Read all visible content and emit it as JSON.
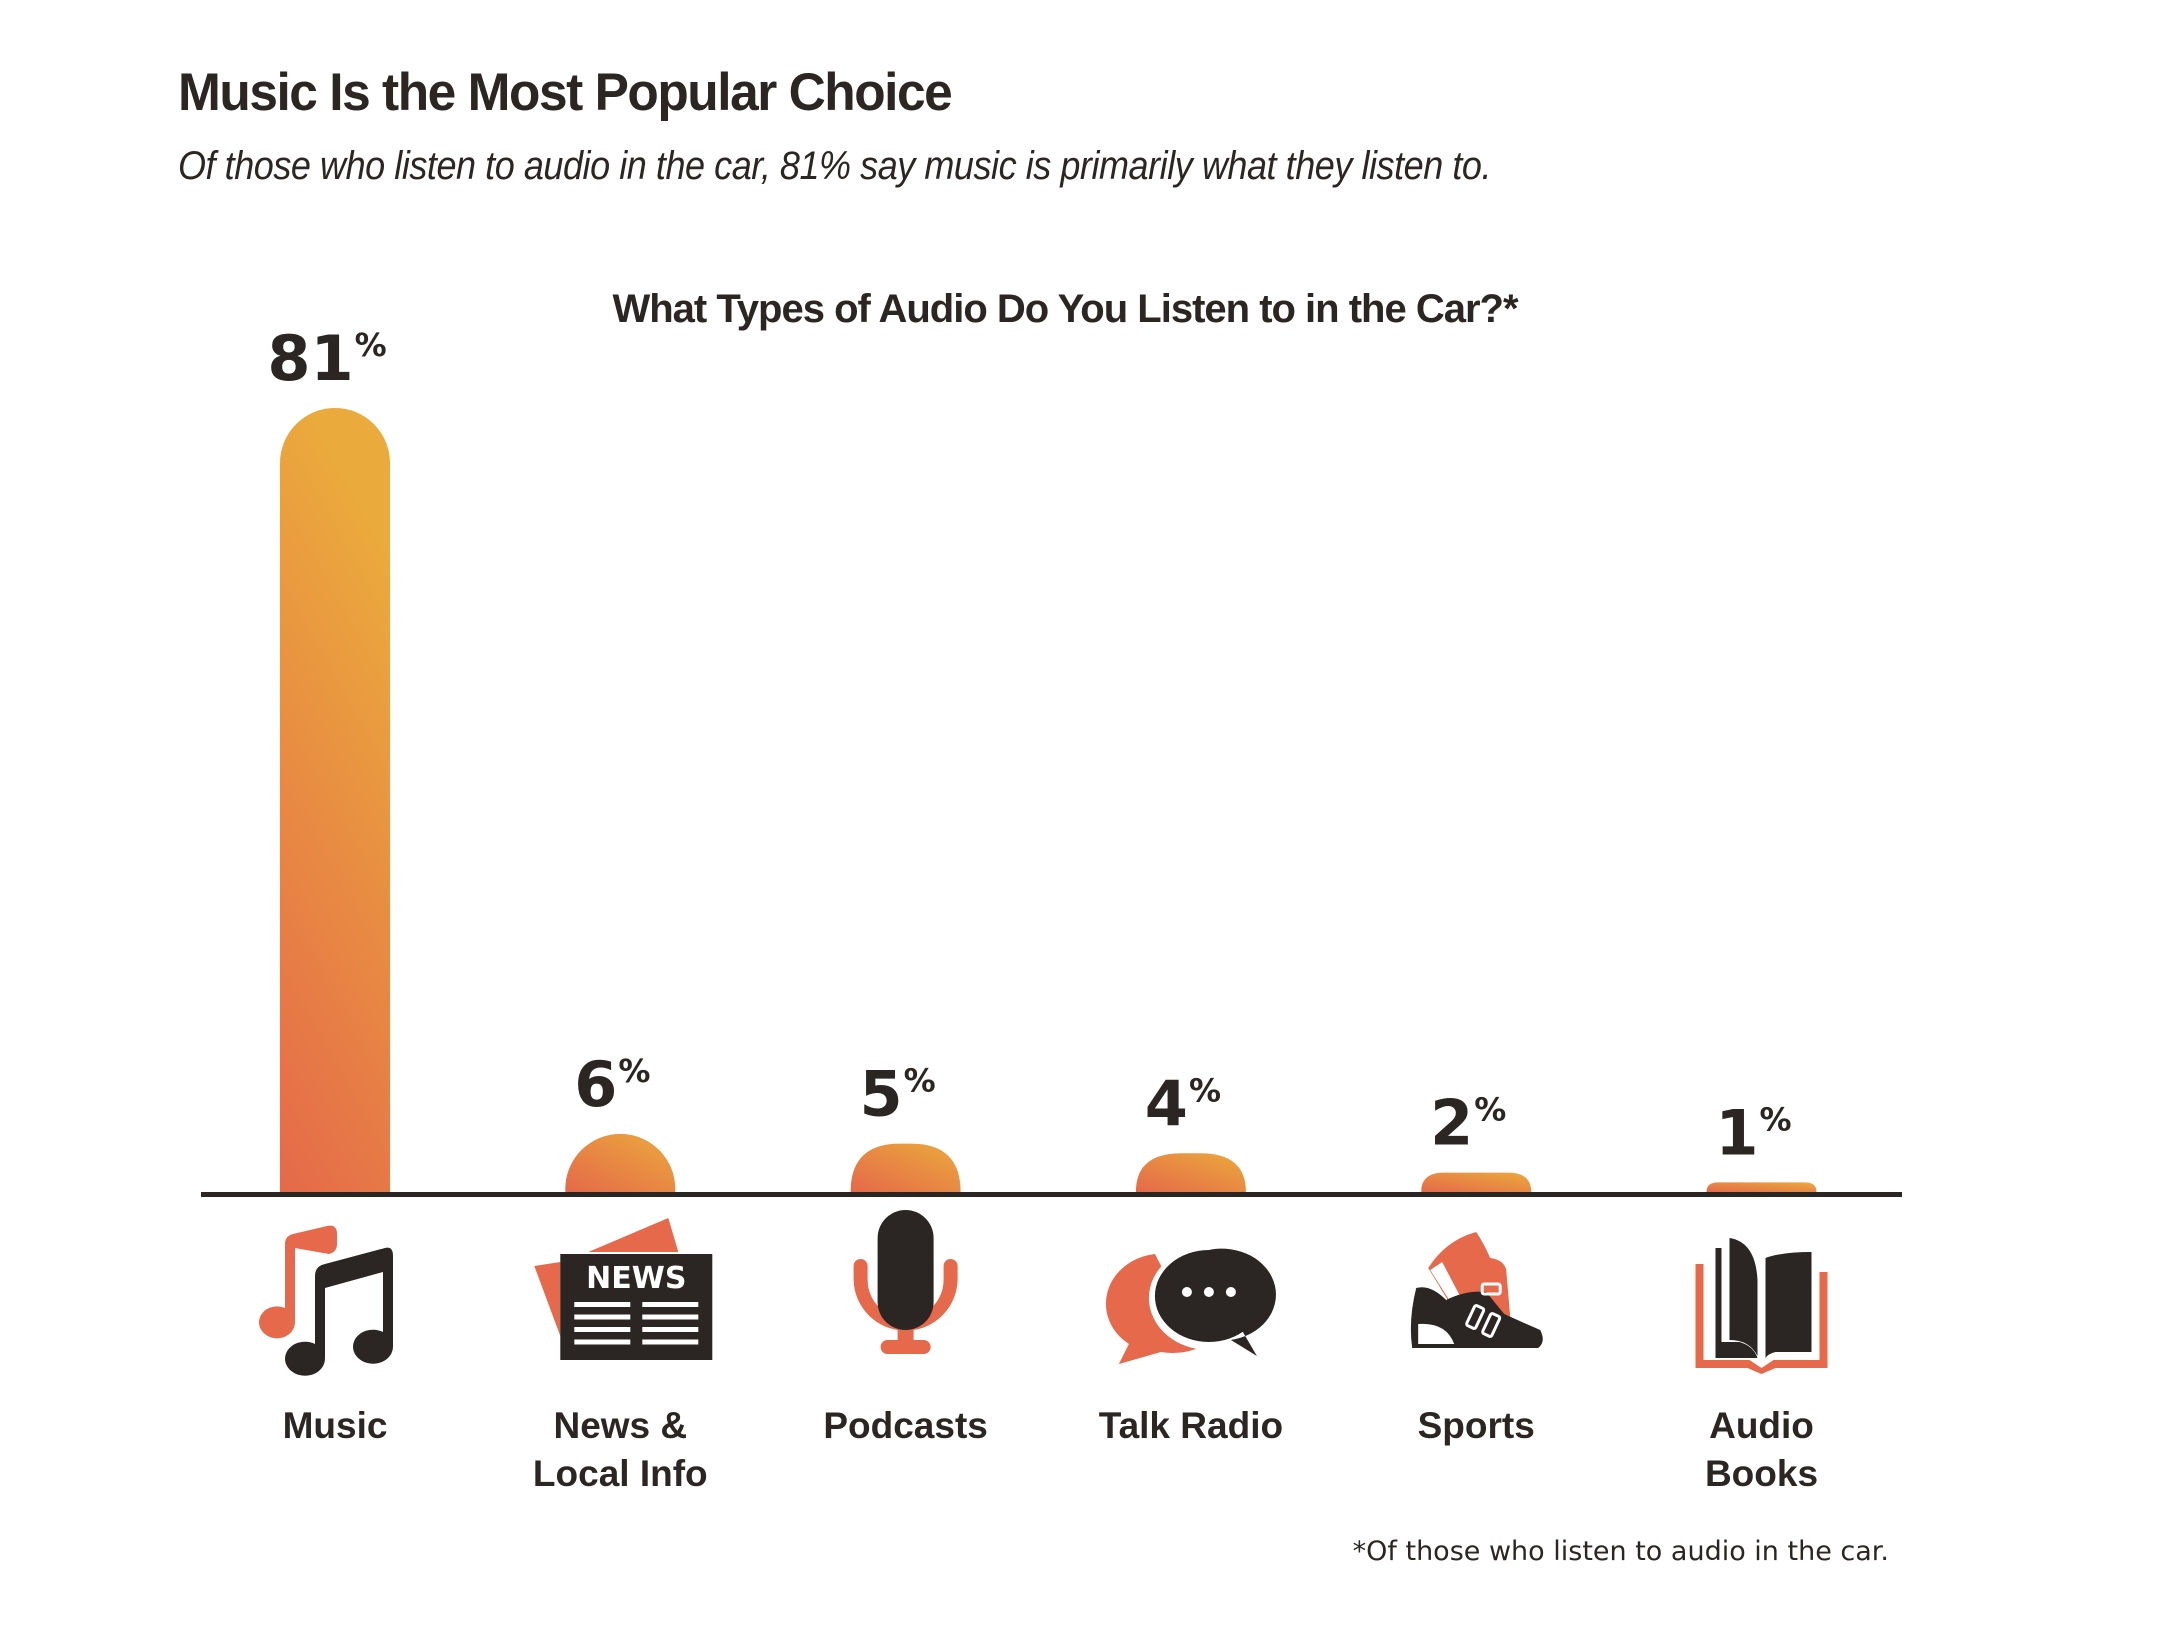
{
  "header": {
    "title": "Music Is the Most Popular Choice",
    "subtitle": "Of those who listen to audio in the car, 81% say music is primarily what they listen to."
  },
  "colors": {
    "text": "#2B2623",
    "accent_orange": "#E5694A",
    "gradient_light": "#EBAA3C",
    "gradient_dark": "#E5694A",
    "axis": "#2B2623"
  },
  "chart_data": {
    "type": "bar",
    "title": "What Types of Audio Do You Listen to in the Car?*",
    "xlabel": "",
    "ylabel": "",
    "ylim": [
      0,
      81
    ],
    "grid": false,
    "unit": "%",
    "categories": [
      {
        "label_lines": [
          "Music"
        ],
        "icon": "music-notes-icon"
      },
      {
        "label_lines": [
          "News &",
          "Local Info"
        ],
        "icon": "newspaper-icon"
      },
      {
        "label_lines": [
          "Podcasts"
        ],
        "icon": "microphone-icon"
      },
      {
        "label_lines": [
          "Talk Radio"
        ],
        "icon": "speech-bubbles-icon"
      },
      {
        "label_lines": [
          "Sports"
        ],
        "icon": "sneakers-icon"
      },
      {
        "label_lines": [
          "Audio",
          "Books"
        ],
        "icon": "open-book-icon"
      }
    ],
    "values": [
      81,
      6,
      5,
      4,
      2,
      1
    ],
    "icon_text": {
      "news": "NEWS"
    },
    "footnote": "*Of those who listen to audio in the car."
  }
}
